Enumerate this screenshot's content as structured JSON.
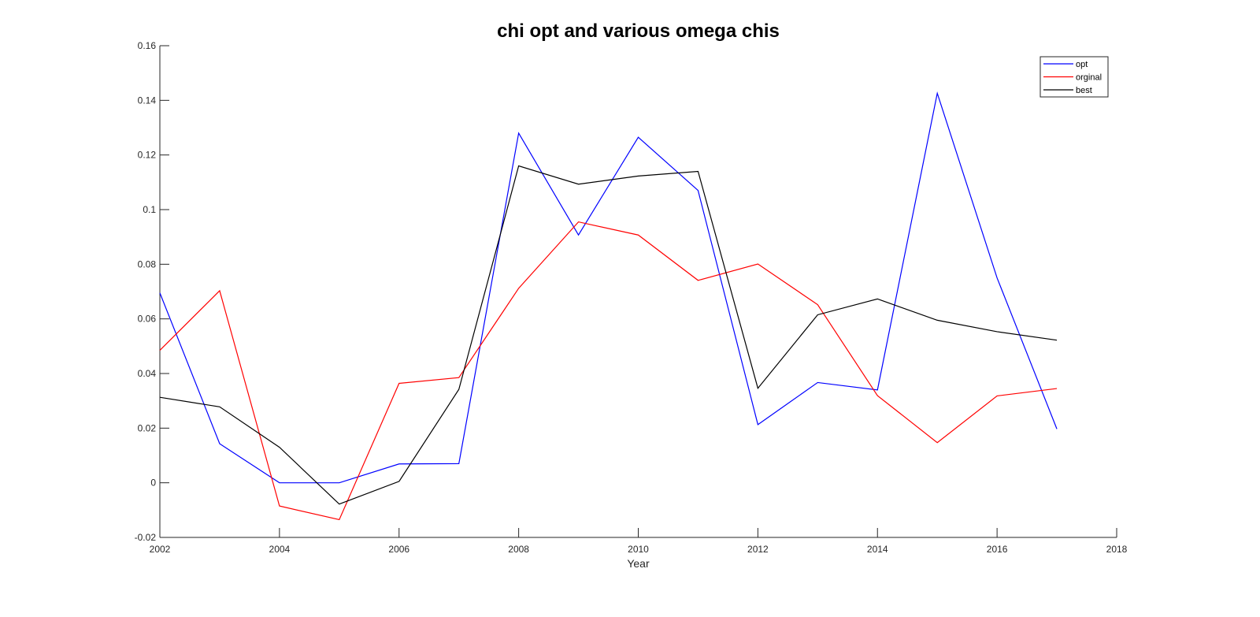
{
  "chart_data": {
    "type": "line",
    "title": "chi opt and various omega chis",
    "xlabel": "Year",
    "ylabel": "",
    "xlim": [
      2002,
      2018
    ],
    "ylim": [
      -0.02,
      0.16
    ],
    "xticks": [
      2002,
      2004,
      2006,
      2008,
      2010,
      2012,
      2014,
      2016,
      2018
    ],
    "xtick_labels": [
      "2002",
      "2004",
      "2006",
      "2008",
      "2010",
      "2012",
      "2014",
      "2016",
      "2018"
    ],
    "yticks": [
      -0.02,
      0,
      0.02,
      0.04,
      0.06,
      0.08,
      0.1,
      0.12,
      0.14,
      0.16
    ],
    "ytick_labels": [
      "-0.02",
      "0",
      "0.02",
      "0.04",
      "0.06",
      "0.08",
      "0.1",
      "0.12",
      "0.14",
      "0.16"
    ],
    "grid": false,
    "legend_position": "top-right",
    "x": [
      2002,
      2003,
      2004,
      2005,
      2006,
      2007,
      2008,
      2009,
      2010,
      2011,
      2012,
      2013,
      2014,
      2015,
      2016,
      2017
    ],
    "series": [
      {
        "name": "opt",
        "color": "#0000ff",
        "values": [
          0.0695,
          0.0143,
          0.0,
          0.0,
          0.0069,
          0.007,
          0.128,
          0.0907,
          0.1265,
          0.107,
          0.0213,
          0.0367,
          0.034,
          0.1426,
          0.075,
          0.0197
        ]
      },
      {
        "name": "orginal",
        "color": "#ff0000",
        "values": [
          0.0485,
          0.0703,
          -0.0085,
          -0.0135,
          0.0364,
          0.0385,
          0.0712,
          0.0955,
          0.0907,
          0.0741,
          0.0801,
          0.0652,
          0.0319,
          0.0147,
          0.0318,
          0.0345
        ]
      },
      {
        "name": "best",
        "color": "#000000",
        "values": [
          0.0313,
          0.0278,
          0.013,
          -0.0078,
          0.0005,
          0.0342,
          0.116,
          0.1093,
          0.1123,
          0.114,
          0.0346,
          0.0615,
          0.0673,
          0.0595,
          0.0553,
          0.0522
        ]
      }
    ]
  }
}
